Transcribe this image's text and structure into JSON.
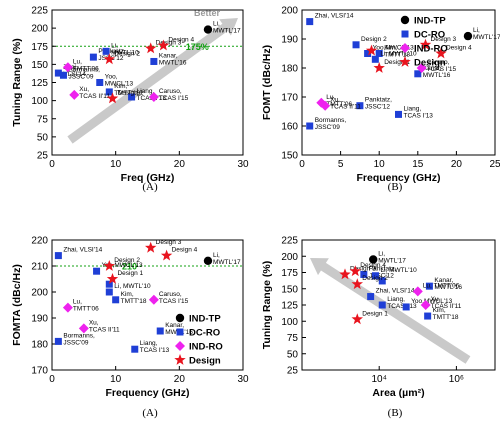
{
  "colors": {
    "ind_tp": "#000000",
    "dc_ro": "#1f3fd6",
    "ind_ro": "#ee22ee",
    "design": "#e8141e",
    "arrow": "#c9c9c9",
    "ref": "#13a013"
  },
  "legend": [
    "IND-TP",
    "DC-RO",
    "IND-RO",
    "Design"
  ],
  "chart_data": [
    {
      "type": "scatter",
      "caption": "(A)",
      "xlabel": "Freq (GHz)",
      "ylabel": "Tuning Range (%)",
      "xlim": [
        0,
        30
      ],
      "ylim": [
        25,
        225
      ],
      "xticks": [
        0,
        10,
        20,
        30
      ],
      "yticks": [
        25,
        50,
        75,
        100,
        125,
        150,
        175,
        200,
        225
      ],
      "ref_line": {
        "value": 175,
        "label": "175%"
      },
      "arrow_label": "Better",
      "points": [
        {
          "cat": "ind_tp",
          "x": 24.5,
          "y": 198,
          "label": "Li,\nMWTL'17"
        },
        {
          "cat": "dc_ro",
          "x": 1.0,
          "y": 138,
          "label": "Zhai,\nVLSI'14"
        },
        {
          "cat": "dc_ro",
          "x": 1.8,
          "y": 135,
          "label": "Bormanns,\nJSSC'09"
        },
        {
          "cat": "dc_ro",
          "x": 6.5,
          "y": 160,
          "label": "Pankratz,\nJSSC'12"
        },
        {
          "cat": "dc_ro",
          "x": 8.5,
          "y": 168,
          "label": "Li,\nMWTL'10"
        },
        {
          "cat": "dc_ro",
          "x": 7.5,
          "y": 125,
          "label": "Yoo,\nMWCL'13"
        },
        {
          "cat": "dc_ro",
          "x": 9.0,
          "y": 112,
          "label": "Kim,\nTMTT'18"
        },
        {
          "cat": "dc_ro",
          "x": 12.5,
          "y": 105,
          "label": "Liang,\nTCAS I'13"
        },
        {
          "cat": "dc_ro",
          "x": 16.0,
          "y": 154,
          "label": "Kanar,\nMWTL'16"
        },
        {
          "cat": "ind_ro",
          "x": 2.5,
          "y": 146,
          "label": "Lu,\nTMTT'06"
        },
        {
          "cat": "ind_ro",
          "x": 3.5,
          "y": 108,
          "label": "Xu,\nTCAS II'11"
        },
        {
          "cat": "ind_ro",
          "x": 16.0,
          "y": 105,
          "label": "Caruso,\nTCAS I'15"
        },
        {
          "cat": "design",
          "x": 9.5,
          "y": 103,
          "label": "Design 1"
        },
        {
          "cat": "design",
          "x": 9.0,
          "y": 157,
          "label": "Design 2"
        },
        {
          "cat": "design",
          "x": 15.5,
          "y": 172,
          "label": "Design 3"
        },
        {
          "cat": "design",
          "x": 17.5,
          "y": 176,
          "label": "Design 4"
        }
      ]
    },
    {
      "type": "scatter",
      "caption": "(B)",
      "xlabel": "Frequency (GHz)",
      "ylabel": "FOMT (dBc/Hz)",
      "xlim": [
        0,
        25
      ],
      "ylim": [
        150,
        200
      ],
      "xticks": [
        0,
        5,
        10,
        15,
        20,
        25
      ],
      "yticks": [
        150,
        160,
        170,
        180,
        190,
        200
      ],
      "points": [
        {
          "cat": "ind_tp",
          "x": 21.5,
          "y": 191,
          "label": "Li,\nMWTL'17"
        },
        {
          "cat": "dc_ro",
          "x": 1.0,
          "y": 196,
          "label": "Zhai, VLSI'14"
        },
        {
          "cat": "dc_ro",
          "x": 7.0,
          "y": 188,
          "label": "Design 2"
        },
        {
          "cat": "dc_ro",
          "x": 10.0,
          "y": 185,
          "label": "Kim,\nTMTT'18"
        },
        {
          "cat": "dc_ro",
          "x": 8.5,
          "y": 185,
          "label": "Yoo,MWCL'13"
        },
        {
          "cat": "dc_ro",
          "x": 9.5,
          "y": 183,
          "label": "Li, MWTL'10"
        },
        {
          "cat": "dc_ro",
          "x": 15.0,
          "y": 178,
          "label": "Kanar,\nMWTL'16"
        },
        {
          "cat": "dc_ro",
          "x": 12.5,
          "y": 164,
          "label": "Liang,\nTCAS I'13"
        },
        {
          "cat": "dc_ro",
          "x": 7.5,
          "y": 167,
          "label": "Panktatz,\nJSSC'12"
        },
        {
          "cat": "dc_ro",
          "x": 1.0,
          "y": 160,
          "label": "Bormanns,\nJSSC'09"
        },
        {
          "cat": "ind_ro",
          "x": 2.5,
          "y": 168,
          "label": "Lu,\nTMTT'06"
        },
        {
          "cat": "ind_ro",
          "x": 15.5,
          "y": 180,
          "label": "Caruso,\nTCAS I'15"
        },
        {
          "cat": "ind_ro",
          "x": 3.0,
          "y": 167,
          "label": "Xu,\nTCAS II'11"
        },
        {
          "cat": "design",
          "x": 10.0,
          "y": 180,
          "label": "Design 1"
        },
        {
          "cat": "design",
          "x": 9.0,
          "y": 186,
          "label": ""
        },
        {
          "cat": "design",
          "x": 16.0,
          "y": 188,
          "label": "Design 3"
        },
        {
          "cat": "design",
          "x": 18.0,
          "y": 185,
          "label": "Design 4"
        }
      ]
    },
    {
      "type": "scatter",
      "caption": "(A)",
      "xlabel": "Frequency (GHz)",
      "ylabel": "FOMTA (dBc/Hz)",
      "xlim": [
        0,
        30
      ],
      "ylim": [
        170,
        220
      ],
      "xticks": [
        0,
        10,
        20,
        30
      ],
      "yticks": [
        170,
        180,
        190,
        200,
        210,
        220
      ],
      "ref_line": {
        "value": 210,
        "label": "210"
      },
      "points": [
        {
          "cat": "ind_tp",
          "x": 24.5,
          "y": 212,
          "label": "Li,\nMWTL'17"
        },
        {
          "cat": "dc_ro",
          "x": 1.0,
          "y": 214,
          "label": "Zhai, VLSI'14"
        },
        {
          "cat": "dc_ro",
          "x": 7.0,
          "y": 208,
          "label": "Yoo,MWCL'13"
        },
        {
          "cat": "dc_ro",
          "x": 9.0,
          "y": 203,
          "label": ""
        },
        {
          "cat": "dc_ro",
          "x": 9.0,
          "y": 200,
          "label": "Li, MWTL'10"
        },
        {
          "cat": "dc_ro",
          "x": 10.0,
          "y": 197,
          "label": "Kim,\nTMTT'18"
        },
        {
          "cat": "dc_ro",
          "x": 17.0,
          "y": 185,
          "label": "Kanar,\nMWTL'16"
        },
        {
          "cat": "dc_ro",
          "x": 13.0,
          "y": 178,
          "label": "Liang,\nTCAS I'13"
        },
        {
          "cat": "dc_ro",
          "x": 1.0,
          "y": 181,
          "label": "Bormanns,\nJSSC'09"
        },
        {
          "cat": "ind_ro",
          "x": 2.5,
          "y": 194,
          "label": "Lu,\nTMTT'06"
        },
        {
          "cat": "ind_ro",
          "x": 5.0,
          "y": 186,
          "label": "Xu,\nTCAS II'11"
        },
        {
          "cat": "ind_ro",
          "x": 16.0,
          "y": 197,
          "label": "Caruso,\nTCAS I'15"
        },
        {
          "cat": "design",
          "x": 9.0,
          "y": 210,
          "label": "Design 2"
        },
        {
          "cat": "design",
          "x": 9.5,
          "y": 205,
          "label": "Design 1"
        },
        {
          "cat": "design",
          "x": 15.5,
          "y": 217,
          "label": "Design 3"
        },
        {
          "cat": "design",
          "x": 18.0,
          "y": 214,
          "label": "Design 4"
        }
      ]
    },
    {
      "type": "scatter",
      "caption": "(B)",
      "xscale": "log",
      "xlabel": "Area (µm²)",
      "ylabel": "Tuning Range (%)",
      "xlim": [
        100,
        10000000
      ],
      "ylim": [
        25,
        225
      ],
      "xticks": [
        10000,
        1000000
      ],
      "xticklabels": [
        "10⁴",
        "10⁶"
      ],
      "yticks": [
        25,
        50,
        75,
        100,
        125,
        150,
        175,
        200,
        225
      ],
      "points": [
        {
          "cat": "ind_tp",
          "x": 7000,
          "y": 195,
          "label": "Li,\nMWTL'17"
        },
        {
          "cat": "dc_ro",
          "x": 4000,
          "y": 172,
          "label": "Panktatz,\nJSSC'12"
        },
        {
          "cat": "dc_ro",
          "x": 8000,
          "y": 170,
          "label": "Li, MWTL'10"
        },
        {
          "cat": "dc_ro",
          "x": 12000,
          "y": 162,
          "label": ""
        },
        {
          "cat": "dc_ro",
          "x": 6000,
          "y": 138,
          "label": "Zhai, VLSI'14"
        },
        {
          "cat": "dc_ro",
          "x": 12000,
          "y": 125,
          "label": "Liang,\nTCAS I'13"
        },
        {
          "cat": "dc_ro",
          "x": 50000,
          "y": 122,
          "label": "Yoo,MWCL'13"
        },
        {
          "cat": "dc_ro",
          "x": 180000,
          "y": 108,
          "label": "Kim,\nTMTT'18"
        },
        {
          "cat": "dc_ro",
          "x": 200000,
          "y": 154,
          "label": "Kanar,\nMWTL'16"
        },
        {
          "cat": "ind_ro",
          "x": 100000,
          "y": 146,
          "label": "Lu, TMTT'06"
        },
        {
          "cat": "ind_ro",
          "x": 160000,
          "y": 125,
          "label": "Xu,\nTCAS II'11"
        },
        {
          "cat": "design",
          "x": 1300,
          "y": 172,
          "label": "Design 3"
        },
        {
          "cat": "design",
          "x": 2400,
          "y": 177,
          "label": "Design 4"
        },
        {
          "cat": "design",
          "x": 2700,
          "y": 157,
          "label": "Design 2"
        },
        {
          "cat": "design",
          "x": 2700,
          "y": 103,
          "label": "Design 1"
        }
      ]
    }
  ]
}
